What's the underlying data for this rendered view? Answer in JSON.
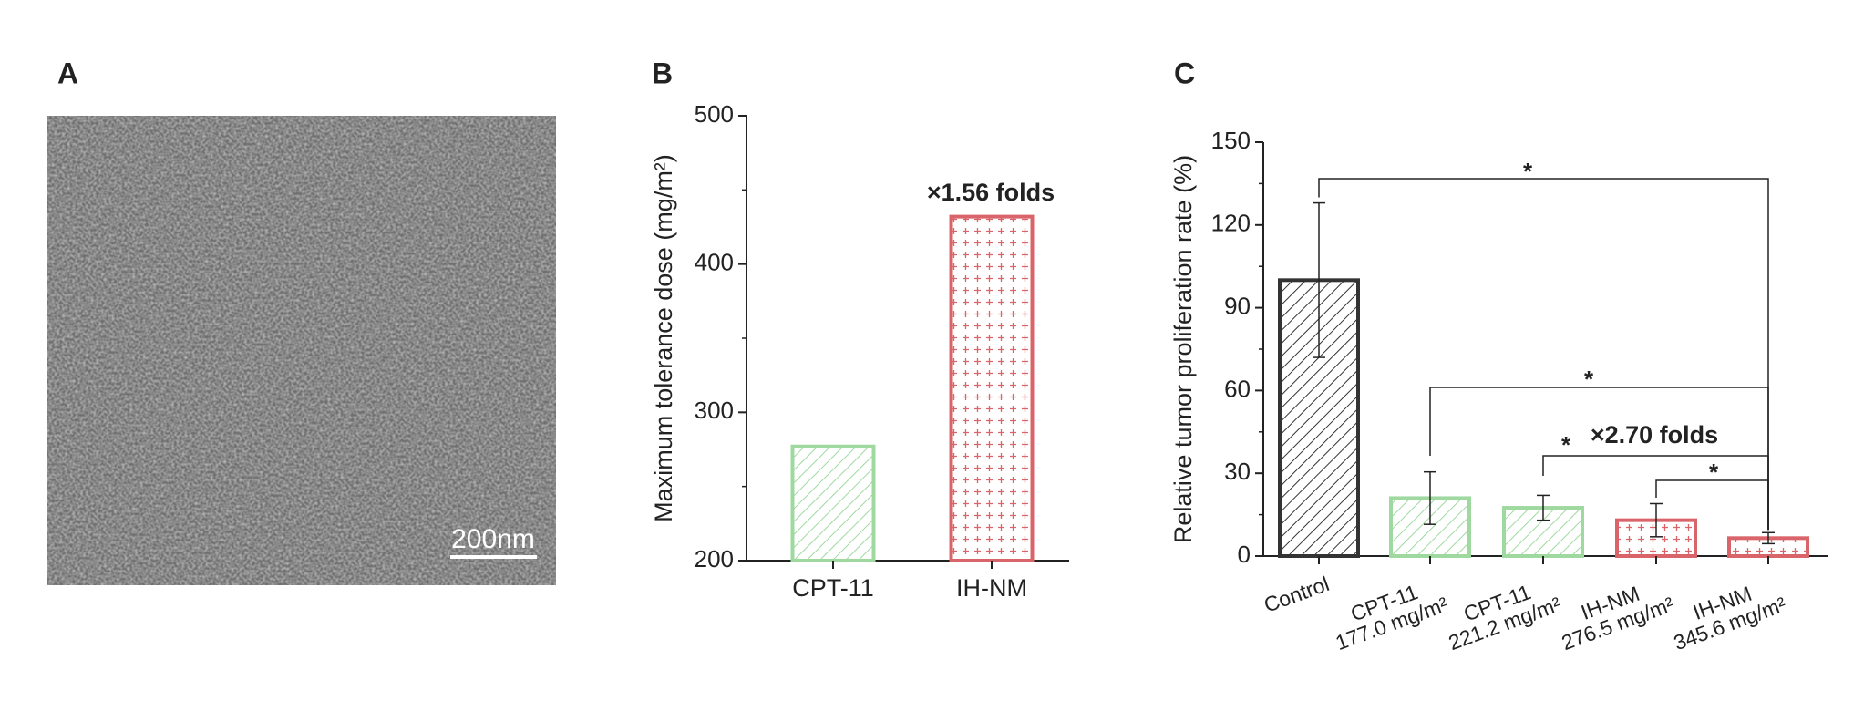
{
  "panel_labels": [
    "A",
    "B",
    "C"
  ],
  "scale_bar_label": "200nm",
  "chart_data": [
    {
      "type": "bar",
      "ylabel": "Maximum tolerance dose (mg/m²)",
      "categories": [
        "CPT-11",
        "IH-NM"
      ],
      "values": [
        277,
        432
      ],
      "colors": [
        "#9fd9a0",
        "#d9646a"
      ],
      "patterns": [
        "hatch",
        "cross"
      ],
      "ylim": [
        200,
        500
      ],
      "yticks": [
        200,
        300,
        400,
        500
      ],
      "annotations": [
        "×1.56 folds"
      ]
    },
    {
      "type": "bar",
      "ylabel": "Relative tumor proliferation rate (%)",
      "categories": [
        "Control",
        "CPT-11\n177.0 mg/m²",
        "CPT-11\n221.2 mg/m²",
        "IH-NM\n276.5 mg/m²",
        "IH-NM\n345.6 mg/m²"
      ],
      "values": [
        100,
        21,
        17.5,
        13,
        6.5
      ],
      "errors": [
        28,
        9.5,
        4.5,
        6,
        2
      ],
      "colors": [
        "#333333",
        "#9fd9a0",
        "#9fd9a0",
        "#d9646a",
        "#d9646a"
      ],
      "patterns": [
        "hatch",
        "hatch",
        "hatch",
        "cross",
        "cross"
      ],
      "ylim": [
        0,
        150
      ],
      "yticks": [
        0,
        30,
        60,
        90,
        120,
        150
      ],
      "annotations": [
        "*",
        "*",
        "*",
        "*",
        "×2.70 folds"
      ]
    }
  ]
}
